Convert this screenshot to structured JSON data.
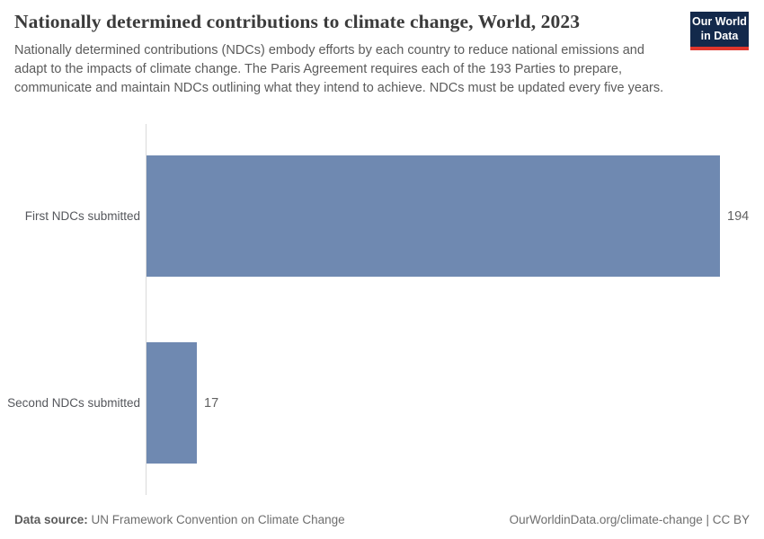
{
  "header": {
    "title": "Nationally determined contributions to climate change, World, 2023",
    "subtitle": "Nationally determined contributions (NDCs) embody efforts by each country to reduce national emissions and adapt to the impacts of climate change. The Paris Agreement requires each of the 193 Parties to prepare, communicate and maintain NDCs outlining what they intend to achieve. NDCs must be updated every five years.",
    "logo": {
      "line1": "Our World",
      "line2": "in Data"
    }
  },
  "chart_data": {
    "type": "bar",
    "orientation": "horizontal",
    "title": "Nationally determined contributions to climate change, World, 2023",
    "categories": [
      "First NDCs submitted",
      "Second NDCs submitted"
    ],
    "values": [
      194,
      17
    ],
    "value_labels": [
      "194",
      "17"
    ],
    "xlim": [
      0,
      194
    ],
    "grid": false,
    "legend": "none",
    "bar_color": "#6f89b1"
  },
  "footer": {
    "source_label": "Data source:",
    "source_value": "UN Framework Convention on Climate Change",
    "attribution": "OurWorldinData.org/climate-change | CC BY"
  },
  "colors": {
    "bar": "#6f89b1",
    "logo_background": "#13294b",
    "logo_accent": "#e0362c",
    "axis_line": "#dadada",
    "title_text": "#3b3b3b",
    "body_text": "#5b5b5b"
  }
}
